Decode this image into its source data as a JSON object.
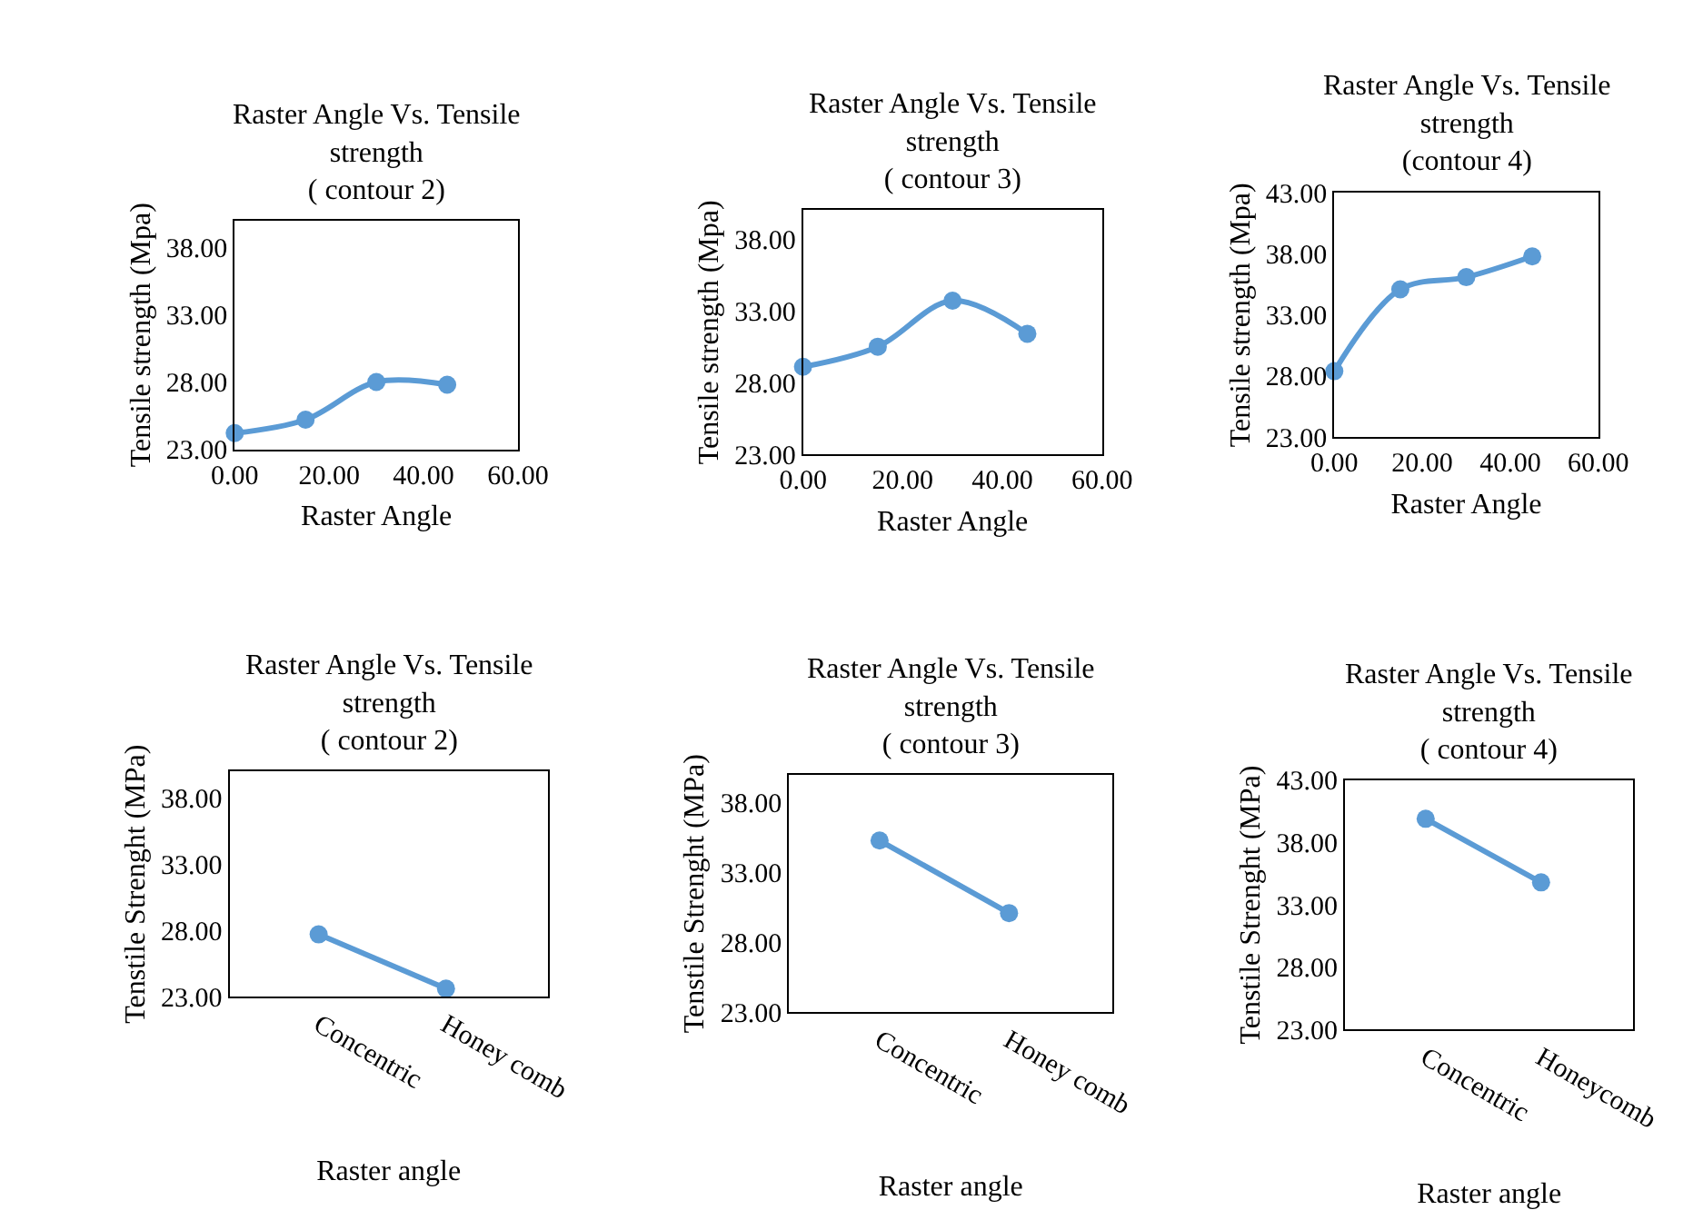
{
  "chart_data": [
    {
      "type": "line",
      "title": "Raster Angle Vs. Tensile\nstrength\n( contour 2)",
      "xlabel": "Raster Angle",
      "ylabel": "Tensile strength (Mpa)",
      "x": [
        0,
        15,
        30,
        45
      ],
      "series": [
        {
          "color": "#5b9bd5",
          "values": [
            24.2,
            25.2,
            28.0,
            27.8
          ]
        }
      ],
      "xlim": [
        0,
        60
      ],
      "xticks": [
        {
          "value": 0,
          "label": "0.00"
        },
        {
          "value": 20,
          "label": "20.00"
        },
        {
          "value": 40,
          "label": "40.00"
        },
        {
          "value": 60,
          "label": "60.00"
        }
      ],
      "ylim": [
        23,
        40
      ],
      "yticks": [
        {
          "value": 23,
          "label": "23.00"
        },
        {
          "value": 28,
          "label": "28.00"
        },
        {
          "value": 33,
          "label": "33.00"
        },
        {
          "value": 38,
          "label": "38.00"
        }
      ],
      "marker": "circle"
    },
    {
      "type": "line",
      "title": "Raster Angle Vs. Tensile\nstrength\n( contour 3)",
      "xlabel": "Raster Angle",
      "ylabel": "Tensile strength (Mpa)",
      "x": [
        0,
        15,
        30,
        45
      ],
      "series": [
        {
          "color": "#5b9bd5",
          "values": [
            29.1,
            30.5,
            33.7,
            31.4
          ]
        }
      ],
      "xlim": [
        0,
        60
      ],
      "xticks": [
        {
          "value": 0,
          "label": "0.00"
        },
        {
          "value": 20,
          "label": "20.00"
        },
        {
          "value": 40,
          "label": "40.00"
        },
        {
          "value": 60,
          "label": "60.00"
        }
      ],
      "ylim": [
        23,
        40
      ],
      "yticks": [
        {
          "value": 23,
          "label": "23.00"
        },
        {
          "value": 28,
          "label": "28.00"
        },
        {
          "value": 33,
          "label": "33.00"
        },
        {
          "value": 38,
          "label": "38.00"
        }
      ],
      "marker": "circle"
    },
    {
      "type": "line",
      "title": "Raster Angle Vs. Tensile\nstrength\n(contour 4)",
      "xlabel": "Raster Angle",
      "ylabel": "Tensile strength (Mpa)",
      "x": [
        0,
        15,
        30,
        45
      ],
      "series": [
        {
          "color": "#5b9bd5",
          "values": [
            28.4,
            35.1,
            36.1,
            37.8
          ]
        }
      ],
      "xlim": [
        0,
        60
      ],
      "xticks": [
        {
          "value": 0,
          "label": "0.00"
        },
        {
          "value": 20,
          "label": "20.00"
        },
        {
          "value": 40,
          "label": "40.00"
        },
        {
          "value": 60,
          "label": "60.00"
        }
      ],
      "ylim": [
        23,
        43
      ],
      "yticks": [
        {
          "value": 23,
          "label": "23.00"
        },
        {
          "value": 28,
          "label": "28.00"
        },
        {
          "value": 33,
          "label": "33.00"
        },
        {
          "value": 38,
          "label": "38.00"
        },
        {
          "value": 43,
          "label": "43.00"
        }
      ],
      "marker": "circle"
    },
    {
      "type": "line",
      "title": "Raster Angle Vs. Tensile\nstrength\n( contour 2)",
      "xlabel": "Raster angle",
      "ylabel": "Tenstile Strenght (MPa)",
      "categories": [
        "Concentric",
        "Honey comb"
      ],
      "series": [
        {
          "color": "#5b9bd5",
          "values": [
            27.7,
            23.6
          ]
        }
      ],
      "ylim": [
        23,
        40
      ],
      "yticks": [
        {
          "value": 23,
          "label": "23.00"
        },
        {
          "value": 28,
          "label": "28.00"
        },
        {
          "value": 33,
          "label": "33.00"
        },
        {
          "value": 38,
          "label": "38.00"
        }
      ],
      "marker": "circle"
    },
    {
      "type": "line",
      "title": "Raster Angle Vs. Tensile\nstrength\n( contour 3)",
      "xlabel": "Raster angle",
      "ylabel": "Tenstile Strenght (MPa)",
      "categories": [
        "Concentric",
        "Honey comb"
      ],
      "series": [
        {
          "color": "#5b9bd5",
          "values": [
            35.3,
            30.1
          ]
        }
      ],
      "ylim": [
        23,
        40
      ],
      "yticks": [
        {
          "value": 23,
          "label": "23.00"
        },
        {
          "value": 28,
          "label": "28.00"
        },
        {
          "value": 33,
          "label": "33.00"
        },
        {
          "value": 38,
          "label": "38.00"
        }
      ],
      "marker": "circle"
    },
    {
      "type": "line",
      "title": "Raster Angle Vs. Tensile\nstrength\n( contour 4)",
      "xlabel": "Raster angle",
      "ylabel": "Tenstile Strenght (MPa)",
      "categories": [
        "Concentric",
        "Honeycomb"
      ],
      "series": [
        {
          "color": "#5b9bd5",
          "values": [
            39.9,
            34.8
          ]
        }
      ],
      "ylim": [
        23,
        43
      ],
      "yticks": [
        {
          "value": 23,
          "label": "23.00"
        },
        {
          "value": 28,
          "label": "28.00"
        },
        {
          "value": 33,
          "label": "33.00"
        },
        {
          "value": 38,
          "label": "38.00"
        },
        {
          "value": 43,
          "label": "43.00"
        }
      ],
      "marker": "circle"
    }
  ]
}
